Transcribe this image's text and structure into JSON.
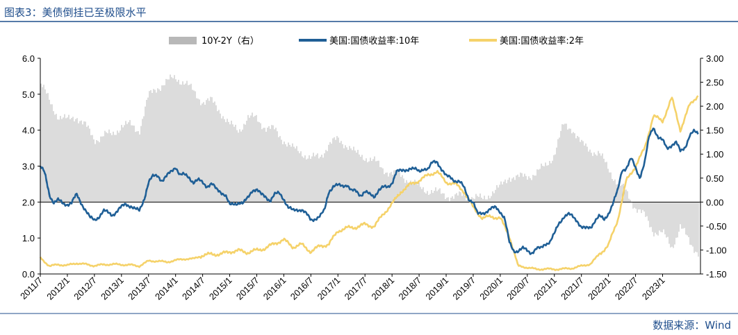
{
  "header": {
    "title": "图表3：美债倒挂已至极限水平"
  },
  "footer": {
    "source": "数据来源：Wind"
  },
  "colors": {
    "title": "#1f4e8c",
    "rule": "#1f4e8c",
    "spread_bar": "#b8b8b8",
    "yield_10y": "#1f5f96",
    "yield_2y": "#f5d26a"
  },
  "chart_data": {
    "type": "line",
    "title": "美债倒挂已至极限水平",
    "legend": [
      {
        "name": "10Y-2Y（右）",
        "style": "bar"
      },
      {
        "name": "美国:国债收益率:10年",
        "style": "line"
      },
      {
        "name": "美国:国债收益率:2年",
        "style": "line"
      }
    ],
    "legend_position": "top-center",
    "x_tick_labels": [
      "2011/7",
      "2012/1",
      "2012/7",
      "2013/1",
      "2013/7",
      "2014/1",
      "2014/7",
      "2015/1",
      "2015/7",
      "2016/1",
      "2016/7",
      "2017/1",
      "2017/7",
      "2018/1",
      "2018/7",
      "2019/1",
      "2019/7",
      "2020/1",
      "2020/7",
      "2021/1",
      "2021/7",
      "2022/1",
      "2022/7",
      "2023/1"
    ],
    "x_range": [
      2011.5,
      2023.7
    ],
    "y_left": {
      "min": 0,
      "max": 6,
      "ticks": [
        "0.0",
        "1.0",
        "2.0",
        "3.0",
        "4.0",
        "5.0",
        "6.0"
      ]
    },
    "y_right": {
      "min": -1.5,
      "max": 3.0,
      "ticks": [
        "-1.50",
        "-1.00",
        "-0.50",
        "0.00",
        "0.50",
        "1.00",
        "1.50",
        "2.00",
        "2.50",
        "3.00"
      ]
    },
    "series": [
      {
        "name": "美国:国债收益率:10年",
        "axis": "left",
        "x": [
          2011.5,
          2011.58,
          2011.67,
          2011.75,
          2011.83,
          2011.92,
          2012.0,
          2012.08,
          2012.17,
          2012.25,
          2012.33,
          2012.42,
          2012.5,
          2012.58,
          2012.67,
          2012.75,
          2012.83,
          2012.92,
          2013.0,
          2013.08,
          2013.17,
          2013.25,
          2013.33,
          2013.42,
          2013.5,
          2013.58,
          2013.67,
          2013.75,
          2013.83,
          2013.92,
          2014.0,
          2014.08,
          2014.17,
          2014.25,
          2014.33,
          2014.42,
          2014.5,
          2014.58,
          2014.67,
          2014.75,
          2014.83,
          2014.92,
          2015.0,
          2015.08,
          2015.17,
          2015.25,
          2015.33,
          2015.42,
          2015.5,
          2015.58,
          2015.67,
          2015.75,
          2015.83,
          2015.92,
          2016.0,
          2016.08,
          2016.17,
          2016.25,
          2016.33,
          2016.42,
          2016.5,
          2016.58,
          2016.67,
          2016.75,
          2016.83,
          2016.92,
          2017.0,
          2017.08,
          2017.17,
          2017.25,
          2017.33,
          2017.42,
          2017.5,
          2017.58,
          2017.67,
          2017.75,
          2017.83,
          2017.92,
          2018.0,
          2018.08,
          2018.17,
          2018.25,
          2018.33,
          2018.42,
          2018.5,
          2018.58,
          2018.67,
          2018.75,
          2018.83,
          2018.92,
          2019.0,
          2019.08,
          2019.17,
          2019.25,
          2019.33,
          2019.42,
          2019.5,
          2019.58,
          2019.67,
          2019.75,
          2019.83,
          2019.92,
          2020.0,
          2020.08,
          2020.17,
          2020.25,
          2020.33,
          2020.42,
          2020.5,
          2020.58,
          2020.67,
          2020.75,
          2020.83,
          2020.92,
          2021.0,
          2021.08,
          2021.17,
          2021.25,
          2021.33,
          2021.42,
          2021.5,
          2021.58,
          2021.67,
          2021.75,
          2021.83,
          2021.92,
          2022.0,
          2022.08,
          2022.17,
          2022.25,
          2022.33,
          2022.42,
          2022.5,
          2022.58,
          2022.67,
          2022.75,
          2022.83,
          2022.92,
          2023.0,
          2023.08,
          2023.17,
          2023.25,
          2023.33,
          2023.42,
          2023.5,
          2023.58,
          2023.67
        ],
        "values": [
          3.0,
          2.8,
          2.2,
          2.0,
          2.05,
          1.95,
          1.95,
          1.98,
          2.2,
          2.0,
          1.8,
          1.55,
          1.5,
          1.6,
          1.75,
          1.7,
          1.65,
          1.75,
          1.85,
          1.95,
          1.9,
          1.8,
          1.75,
          2.1,
          2.55,
          2.7,
          2.75,
          2.6,
          2.7,
          2.85,
          3.0,
          2.75,
          2.75,
          2.7,
          2.55,
          2.6,
          2.55,
          2.45,
          2.5,
          2.35,
          2.3,
          2.2,
          1.9,
          1.95,
          2.0,
          1.95,
          2.1,
          2.35,
          2.35,
          2.2,
          2.15,
          2.05,
          2.2,
          2.25,
          2.1,
          1.85,
          1.75,
          1.8,
          1.8,
          1.65,
          1.5,
          1.55,
          1.6,
          1.75,
          2.3,
          2.45,
          2.45,
          2.45,
          2.5,
          2.3,
          2.3,
          2.2,
          2.3,
          2.2,
          2.15,
          2.35,
          2.4,
          2.4,
          2.55,
          2.85,
          2.85,
          2.9,
          2.95,
          2.9,
          2.85,
          2.95,
          2.9,
          3.1,
          3.15,
          2.9,
          2.7,
          2.7,
          2.6,
          2.55,
          2.4,
          2.1,
          2.0,
          1.65,
          1.7,
          1.75,
          1.8,
          1.85,
          1.75,
          1.55,
          0.85,
          0.65,
          0.65,
          0.7,
          0.65,
          0.6,
          0.7,
          0.7,
          0.85,
          0.9,
          1.1,
          1.4,
          1.6,
          1.65,
          1.6,
          1.5,
          1.3,
          1.25,
          1.3,
          1.5,
          1.6,
          1.5,
          1.7,
          1.95,
          2.3,
          2.9,
          2.95,
          3.2,
          2.95,
          2.7,
          3.1,
          3.8,
          4.1,
          3.8,
          3.7,
          3.5,
          3.6,
          3.65,
          3.4,
          3.55,
          3.85,
          3.95,
          3.9
        ]
      },
      {
        "name": "美国:国债收益率:2年",
        "axis": "left",
        "x": [
          2011.5,
          2011.67,
          2011.83,
          2012.0,
          2012.17,
          2012.33,
          2012.5,
          2012.67,
          2012.83,
          2013.0,
          2013.17,
          2013.33,
          2013.5,
          2013.67,
          2013.83,
          2014.0,
          2014.17,
          2014.33,
          2014.5,
          2014.67,
          2014.83,
          2015.0,
          2015.17,
          2015.33,
          2015.5,
          2015.67,
          2015.83,
          2016.0,
          2016.17,
          2016.33,
          2016.5,
          2016.67,
          2016.83,
          2017.0,
          2017.17,
          2017.33,
          2017.5,
          2017.67,
          2017.83,
          2018.0,
          2018.17,
          2018.33,
          2018.5,
          2018.67,
          2018.83,
          2019.0,
          2019.17,
          2019.33,
          2019.5,
          2019.67,
          2019.83,
          2020.0,
          2020.17,
          2020.33,
          2020.5,
          2020.67,
          2020.83,
          2021.0,
          2021.17,
          2021.33,
          2021.5,
          2021.67,
          2021.83,
          2022.0,
          2022.17,
          2022.33,
          2022.5,
          2022.67,
          2022.83,
          2023.0,
          2023.17,
          2023.33,
          2023.5,
          2023.67
        ],
        "values": [
          0.45,
          0.22,
          0.26,
          0.24,
          0.3,
          0.27,
          0.23,
          0.26,
          0.27,
          0.26,
          0.25,
          0.22,
          0.36,
          0.36,
          0.33,
          0.38,
          0.42,
          0.42,
          0.52,
          0.55,
          0.55,
          0.62,
          0.65,
          0.6,
          0.66,
          0.72,
          0.85,
          0.95,
          0.75,
          0.82,
          0.62,
          0.78,
          0.82,
          1.2,
          1.28,
          1.3,
          1.38,
          1.32,
          1.65,
          1.95,
          2.3,
          2.48,
          2.6,
          2.75,
          2.85,
          2.55,
          2.5,
          2.3,
          1.85,
          1.55,
          1.6,
          1.55,
          1.05,
          0.22,
          0.18,
          0.13,
          0.14,
          0.13,
          0.14,
          0.16,
          0.22,
          0.28,
          0.55,
          0.8,
          1.5,
          2.6,
          3.0,
          3.5,
          4.4,
          4.25,
          4.9,
          4.0,
          4.7,
          5.0
        ]
      },
      {
        "name": "10Y-2Y（右）",
        "axis": "right",
        "type": "bar",
        "x": [
          2011.5,
          2011.67,
          2011.83,
          2012.0,
          2012.17,
          2012.33,
          2012.5,
          2012.67,
          2012.83,
          2013.0,
          2013.17,
          2013.33,
          2013.5,
          2013.67,
          2013.83,
          2014.0,
          2014.17,
          2014.33,
          2014.5,
          2014.67,
          2014.83,
          2015.0,
          2015.17,
          2015.33,
          2015.5,
          2015.67,
          2015.83,
          2016.0,
          2016.17,
          2016.33,
          2016.5,
          2016.67,
          2016.83,
          2017.0,
          2017.17,
          2017.33,
          2017.5,
          2017.67,
          2017.83,
          2018.0,
          2018.17,
          2018.33,
          2018.5,
          2018.67,
          2018.83,
          2019.0,
          2019.17,
          2019.33,
          2019.5,
          2019.67,
          2019.83,
          2020.0,
          2020.17,
          2020.33,
          2020.5,
          2020.67,
          2020.83,
          2021.0,
          2021.17,
          2021.33,
          2021.5,
          2021.67,
          2021.83,
          2022.0,
          2022.17,
          2022.33,
          2022.5,
          2022.67,
          2022.83,
          2023.0,
          2023.17,
          2023.33,
          2023.5,
          2023.67
        ],
        "values": [
          2.5,
          2.1,
          1.8,
          1.7,
          1.8,
          1.6,
          1.3,
          1.4,
          1.4,
          1.6,
          1.6,
          1.5,
          2.2,
          2.4,
          2.5,
          2.6,
          2.5,
          2.3,
          2.1,
          2.1,
          1.9,
          1.6,
          1.5,
          1.75,
          1.75,
          1.55,
          1.5,
          1.3,
          1.1,
          1.05,
          0.9,
          0.95,
          1.2,
          1.3,
          1.2,
          1.0,
          0.95,
          0.85,
          0.7,
          0.6,
          0.55,
          0.45,
          0.3,
          0.25,
          0.2,
          0.15,
          0.1,
          0.15,
          0.1,
          0.05,
          0.2,
          0.3,
          0.55,
          0.5,
          0.55,
          0.6,
          0.75,
          1.0,
          1.6,
          1.55,
          1.2,
          1.1,
          1.0,
          0.7,
          0.4,
          0.2,
          -0.1,
          -0.3,
          -0.6,
          -0.65,
          -0.95,
          -0.5,
          -0.85,
          -1.05
        ]
      }
    ]
  }
}
